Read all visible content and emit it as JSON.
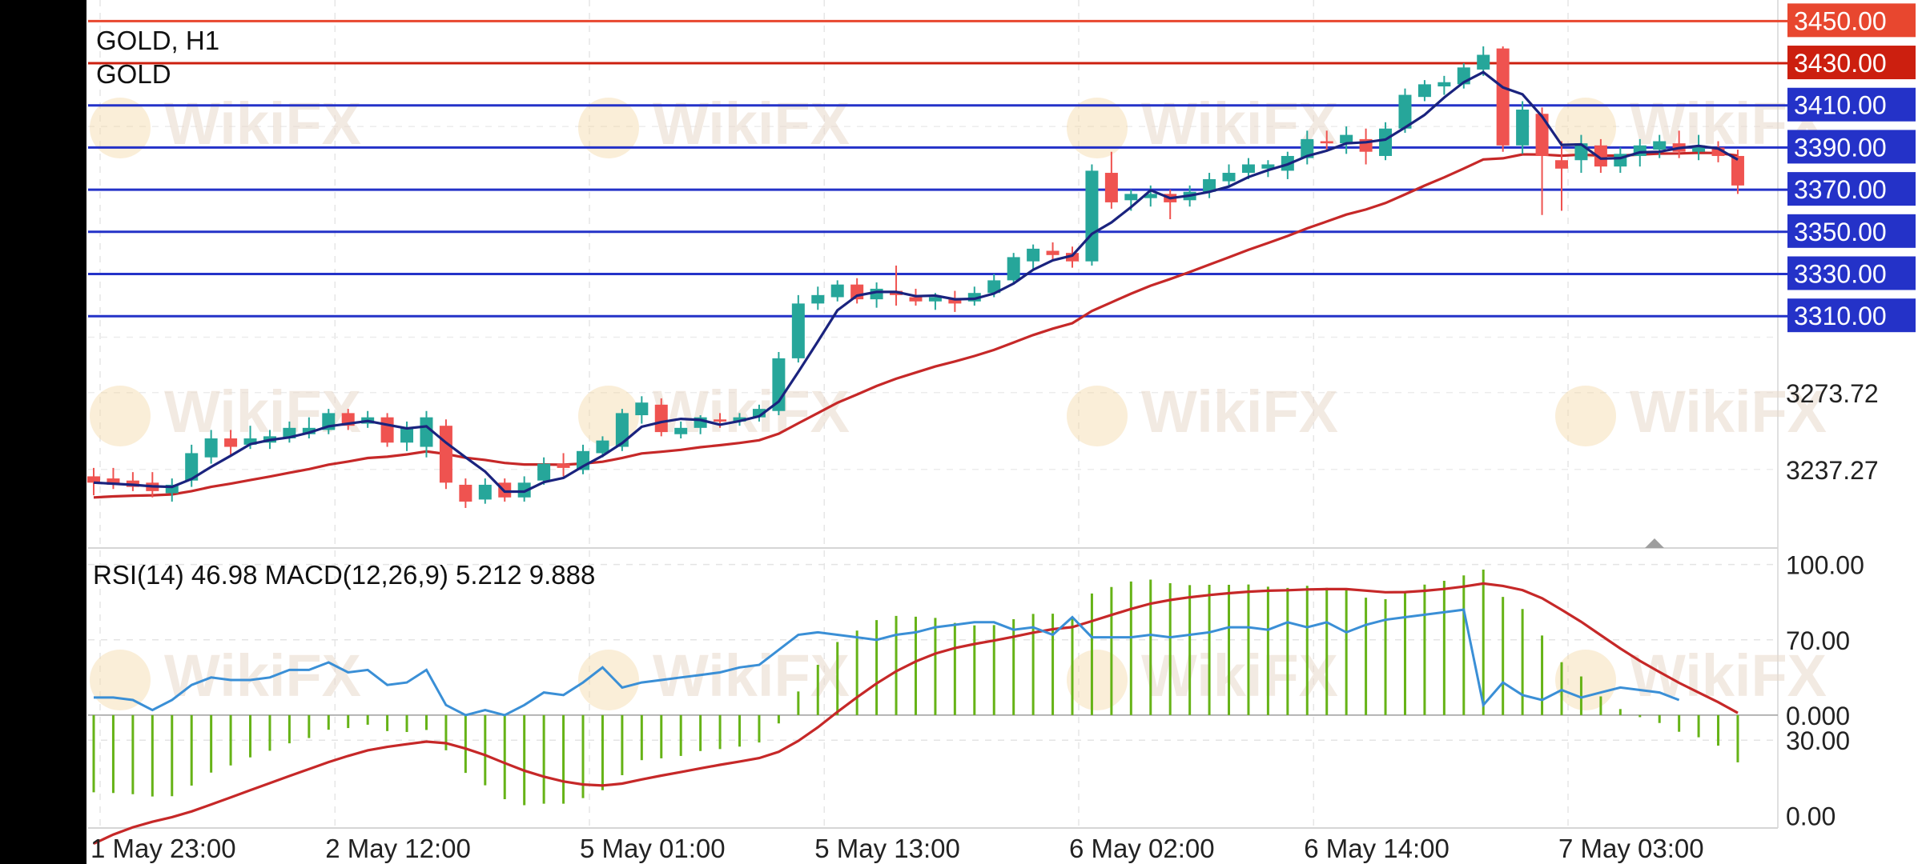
{
  "chart_data": {
    "type": "candlestick",
    "symbol": "GOLD",
    "timeframe": "H1",
    "header_line1": "GOLD, H1",
    "header_line2": "GOLD",
    "watermark": "WikiFX",
    "price_axis": {
      "min": 3200,
      "max": 3460,
      "tick_labels": [
        "3273.72",
        "3237.27"
      ],
      "tick_values": [
        3273.72,
        3237.27
      ]
    },
    "horizontal_levels": [
      {
        "price": 3450,
        "label": "3450.00",
        "color": "#e8472f"
      },
      {
        "price": 3430,
        "label": "3430.00",
        "color": "#cc1f0f"
      },
      {
        "price": 3410,
        "label": "3410.00",
        "color": "#2432c8"
      },
      {
        "price": 3390,
        "label": "3390.00",
        "color": "#2432c8"
      },
      {
        "price": 3370,
        "label": "3370.00",
        "color": "#2432c8"
      },
      {
        "price": 3350,
        "label": "3350.00",
        "color": "#2432c8"
      },
      {
        "price": 3330,
        "label": "3330.00",
        "color": "#2432c8"
      },
      {
        "price": 3310,
        "label": "3310.00",
        "color": "#2432c8"
      }
    ],
    "colors": {
      "bull": "#26a69a",
      "bear": "#ef5350",
      "ma_fast": "#1a237e",
      "ma_slow": "#c62828",
      "rsi": "#3a8fd6",
      "macd_hist": "#66b317",
      "macd_signal": "#c62828"
    },
    "time_labels": [
      {
        "label": "1 May 23:00",
        "index": 0
      },
      {
        "label": "2 May 12:00",
        "index": 12
      },
      {
        "label": "5 May 01:00",
        "index": 25
      },
      {
        "label": "5 May 13:00",
        "index": 37
      },
      {
        "label": "6 May 02:00",
        "index": 50
      },
      {
        "label": "6 May 14:00",
        "index": 62
      },
      {
        "label": "7 May 03:00",
        "index": 75
      }
    ],
    "candles": [
      {
        "o": 3234,
        "h": 3238,
        "l": 3225,
        "c": 3231
      },
      {
        "o": 3233,
        "h": 3238,
        "l": 3228,
        "c": 3230
      },
      {
        "o": 3232,
        "h": 3236,
        "l": 3227,
        "c": 3229
      },
      {
        "o": 3231,
        "h": 3236,
        "l": 3224,
        "c": 3227
      },
      {
        "o": 3226,
        "h": 3233,
        "l": 3222,
        "c": 3230
      },
      {
        "o": 3232,
        "h": 3249,
        "l": 3229,
        "c": 3245
      },
      {
        "o": 3243,
        "h": 3256,
        "l": 3240,
        "c": 3252
      },
      {
        "o": 3252,
        "h": 3256,
        "l": 3244,
        "c": 3248
      },
      {
        "o": 3249,
        "h": 3258,
        "l": 3247,
        "c": 3252
      },
      {
        "o": 3250,
        "h": 3256,
        "l": 3247,
        "c": 3253
      },
      {
        "o": 3252,
        "h": 3260,
        "l": 3250,
        "c": 3257
      },
      {
        "o": 3254,
        "h": 3262,
        "l": 3252,
        "c": 3257
      },
      {
        "o": 3256,
        "h": 3266,
        "l": 3254,
        "c": 3264
      },
      {
        "o": 3264,
        "h": 3266,
        "l": 3256,
        "c": 3258
      },
      {
        "o": 3259,
        "h": 3265,
        "l": 3257,
        "c": 3262
      },
      {
        "o": 3262,
        "h": 3264,
        "l": 3248,
        "c": 3250
      },
      {
        "o": 3250,
        "h": 3260,
        "l": 3246,
        "c": 3257
      },
      {
        "o": 3248,
        "h": 3265,
        "l": 3243,
        "c": 3262
      },
      {
        "o": 3258,
        "h": 3261,
        "l": 3228,
        "c": 3231
      },
      {
        "o": 3230,
        "h": 3233,
        "l": 3219,
        "c": 3222
      },
      {
        "o": 3223,
        "h": 3233,
        "l": 3221,
        "c": 3230
      },
      {
        "o": 3231,
        "h": 3233,
        "l": 3222,
        "c": 3224
      },
      {
        "o": 3224,
        "h": 3234,
        "l": 3222,
        "c": 3231
      },
      {
        "o": 3232,
        "h": 3243,
        "l": 3230,
        "c": 3240
      },
      {
        "o": 3240,
        "h": 3245,
        "l": 3234,
        "c": 3238
      },
      {
        "o": 3237,
        "h": 3249,
        "l": 3235,
        "c": 3246
      },
      {
        "o": 3245,
        "h": 3253,
        "l": 3243,
        "c": 3251
      },
      {
        "o": 3248,
        "h": 3266,
        "l": 3246,
        "c": 3264
      },
      {
        "o": 3263,
        "h": 3272,
        "l": 3259,
        "c": 3269
      },
      {
        "o": 3268,
        "h": 3271,
        "l": 3253,
        "c": 3255
      },
      {
        "o": 3254,
        "h": 3260,
        "l": 3252,
        "c": 3257
      },
      {
        "o": 3257,
        "h": 3263,
        "l": 3254,
        "c": 3262
      },
      {
        "o": 3261,
        "h": 3264,
        "l": 3257,
        "c": 3260
      },
      {
        "o": 3260,
        "h": 3264,
        "l": 3258,
        "c": 3262
      },
      {
        "o": 3262,
        "h": 3268,
        "l": 3260,
        "c": 3266
      },
      {
        "o": 3265,
        "h": 3293,
        "l": 3263,
        "c": 3290
      },
      {
        "o": 3290,
        "h": 3320,
        "l": 3288,
        "c": 3316
      },
      {
        "o": 3316,
        "h": 3324,
        "l": 3313,
        "c": 3320
      },
      {
        "o": 3319,
        "h": 3327,
        "l": 3317,
        "c": 3325
      },
      {
        "o": 3325,
        "h": 3328,
        "l": 3316,
        "c": 3318
      },
      {
        "o": 3318,
        "h": 3326,
        "l": 3314,
        "c": 3323
      },
      {
        "o": 3322,
        "h": 3334,
        "l": 3315,
        "c": 3320
      },
      {
        "o": 3319,
        "h": 3323,
        "l": 3315,
        "c": 3317
      },
      {
        "o": 3317,
        "h": 3321,
        "l": 3313,
        "c": 3319
      },
      {
        "o": 3318,
        "h": 3322,
        "l": 3312,
        "c": 3316
      },
      {
        "o": 3317,
        "h": 3324,
        "l": 3315,
        "c": 3321
      },
      {
        "o": 3321,
        "h": 3330,
        "l": 3319,
        "c": 3327
      },
      {
        "o": 3327,
        "h": 3340,
        "l": 3325,
        "c": 3338
      },
      {
        "o": 3336,
        "h": 3344,
        "l": 3332,
        "c": 3342
      },
      {
        "o": 3341,
        "h": 3345,
        "l": 3336,
        "c": 3339
      },
      {
        "o": 3340,
        "h": 3343,
        "l": 3333,
        "c": 3336
      },
      {
        "o": 3336,
        "h": 3382,
        "l": 3334,
        "c": 3379
      },
      {
        "o": 3378,
        "h": 3388,
        "l": 3361,
        "c": 3364
      },
      {
        "o": 3365,
        "h": 3370,
        "l": 3360,
        "c": 3368
      },
      {
        "o": 3366,
        "h": 3372,
        "l": 3362,
        "c": 3368
      },
      {
        "o": 3368,
        "h": 3370,
        "l": 3356,
        "c": 3364
      },
      {
        "o": 3365,
        "h": 3372,
        "l": 3362,
        "c": 3369
      },
      {
        "o": 3369,
        "h": 3378,
        "l": 3366,
        "c": 3375
      },
      {
        "o": 3374,
        "h": 3382,
        "l": 3371,
        "c": 3378
      },
      {
        "o": 3378,
        "h": 3385,
        "l": 3375,
        "c": 3382
      },
      {
        "o": 3380,
        "h": 3384,
        "l": 3376,
        "c": 3382
      },
      {
        "o": 3379,
        "h": 3388,
        "l": 3375,
        "c": 3386
      },
      {
        "o": 3385,
        "h": 3398,
        "l": 3382,
        "c": 3394
      },
      {
        "o": 3393,
        "h": 3398,
        "l": 3388,
        "c": 3392
      },
      {
        "o": 3392,
        "h": 3400,
        "l": 3387,
        "c": 3396
      },
      {
        "o": 3394,
        "h": 3399,
        "l": 3382,
        "c": 3388
      },
      {
        "o": 3386,
        "h": 3402,
        "l": 3384,
        "c": 3399
      },
      {
        "o": 3399,
        "h": 3418,
        "l": 3397,
        "c": 3415
      },
      {
        "o": 3414,
        "h": 3422,
        "l": 3412,
        "c": 3420
      },
      {
        "o": 3419,
        "h": 3424,
        "l": 3415,
        "c": 3421
      },
      {
        "o": 3420,
        "h": 3430,
        "l": 3418,
        "c": 3428
      },
      {
        "o": 3427,
        "h": 3438,
        "l": 3424,
        "c": 3434
      },
      {
        "o": 3437,
        "h": 3438,
        "l": 3388,
        "c": 3391
      },
      {
        "o": 3391,
        "h": 3412,
        "l": 3387,
        "c": 3408
      },
      {
        "o": 3406,
        "h": 3409,
        "l": 3358,
        "c": 3386
      },
      {
        "o": 3384,
        "h": 3393,
        "l": 3360,
        "c": 3380
      },
      {
        "o": 3384,
        "h": 3396,
        "l": 3378,
        "c": 3392
      },
      {
        "o": 3391,
        "h": 3394,
        "l": 3378,
        "c": 3381
      },
      {
        "o": 3381,
        "h": 3390,
        "l": 3378,
        "c": 3387
      },
      {
        "o": 3386,
        "h": 3394,
        "l": 3381,
        "c": 3391
      },
      {
        "o": 3389,
        "h": 3396,
        "l": 3385,
        "c": 3393
      },
      {
        "o": 3392,
        "h": 3398,
        "l": 3385,
        "c": 3388
      },
      {
        "o": 3388,
        "h": 3396,
        "l": 3384,
        "c": 3391
      },
      {
        "o": 3390,
        "h": 3393,
        "l": 3383,
        "c": 3386
      },
      {
        "o": 3386,
        "h": 3389,
        "l": 3368,
        "c": 3372
      }
    ],
    "indicator": {
      "title": "RSI(14) 46.98 MACD(12,26,9) 5.212 9.888",
      "axis_labels": [
        {
          "label": "100.00",
          "value": 100
        },
        {
          "label": "70.00",
          "value": 70
        },
        {
          "label": "0.000",
          "value": 40
        },
        {
          "label": "30.00",
          "value": 30
        },
        {
          "label": "0.00",
          "value": 0
        }
      ],
      "scale": {
        "min": -5,
        "max": 105
      },
      "zero_level": 40,
      "rsi": [
        47,
        47,
        46,
        42,
        46,
        52,
        55,
        54,
        54,
        55,
        58,
        58,
        61,
        57,
        58,
        52,
        53,
        58,
        44,
        40,
        42,
        40,
        44,
        49,
        48,
        53,
        59,
        51,
        53,
        54,
        55,
        56,
        57,
        59,
        60,
        66,
        72,
        73,
        72,
        71,
        70,
        72,
        73,
        75,
        76,
        77,
        77,
        74,
        75,
        72,
        79,
        71,
        71,
        71,
        72,
        71,
        72,
        73,
        75,
        75,
        74,
        77,
        75,
        77,
        73,
        76,
        78,
        79,
        80,
        81,
        82,
        44,
        53,
        48,
        46,
        50,
        47,
        49,
        51,
        50,
        49,
        46
      ]
    }
  }
}
